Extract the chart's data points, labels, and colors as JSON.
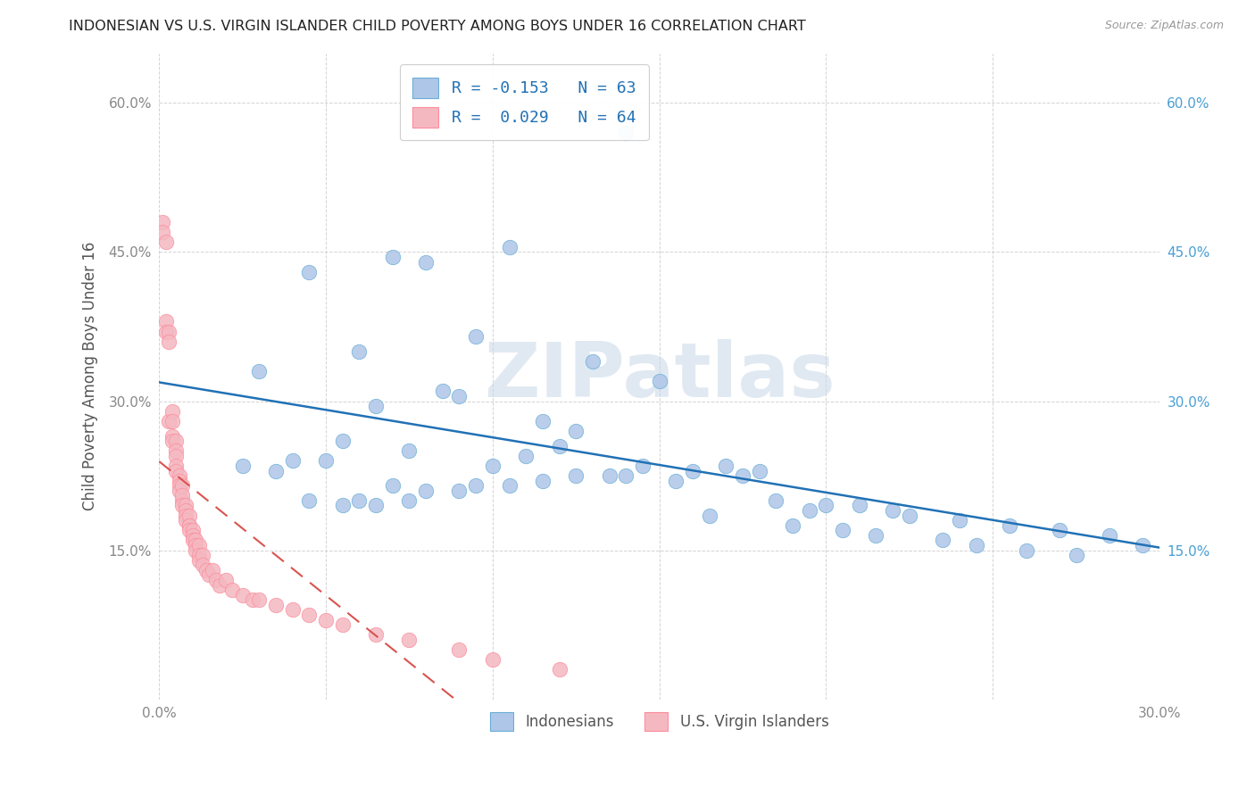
{
  "title": "INDONESIAN VS U.S. VIRGIN ISLANDER CHILD POVERTY AMONG BOYS UNDER 16 CORRELATION CHART",
  "source": "Source: ZipAtlas.com",
  "ylabel": "Child Poverty Among Boys Under 16",
  "xlim": [
    0.0,
    0.3
  ],
  "ylim": [
    0.0,
    0.65
  ],
  "xtick_vals": [
    0.0,
    0.05,
    0.1,
    0.15,
    0.2,
    0.25,
    0.3
  ],
  "xtick_labels": [
    "0.0%",
    "",
    "",
    "",
    "",
    "",
    "30.0%"
  ],
  "ytick_vals": [
    0.0,
    0.15,
    0.3,
    0.45,
    0.6
  ],
  "ytick_labels_left": [
    "",
    "15.0%",
    "30.0%",
    "45.0%",
    "60.0%"
  ],
  "ytick_labels_right": [
    "",
    "15.0%",
    "30.0%",
    "45.0%",
    "60.0%"
  ],
  "blue_face": "#aec6e8",
  "blue_edge": "#6baed6",
  "pink_face": "#f4b8c1",
  "pink_edge": "#fc8d9c",
  "blue_line_color": "#2171b5",
  "pink_line_color": "#d9534f",
  "right_axis_color": "#4a9fd4",
  "watermark_text": "ZIPatlas",
  "watermark_color": "#c8d8e8",
  "legend1_labels": [
    "R = -0.153   N = 63",
    "R =  0.029   N = 64"
  ],
  "legend2_labels": [
    "Indonesians",
    "U.S. Virgin Islanders"
  ],
  "legend_text_color": "#2171b5",
  "tick_color": "#888888",
  "grid_color": "#cccccc",
  "title_color": "#222222",
  "source_color": "#999999",
  "ylabel_color": "#555555",
  "blue_R": -0.153,
  "pink_R": 0.029,
  "blue_points_x": [
    0.14,
    0.07,
    0.08,
    0.105,
    0.045,
    0.095,
    0.06,
    0.13,
    0.15,
    0.03,
    0.085,
    0.065,
    0.115,
    0.125,
    0.055,
    0.09,
    0.075,
    0.11,
    0.05,
    0.04,
    0.12,
    0.1,
    0.17,
    0.145,
    0.16,
    0.135,
    0.155,
    0.175,
    0.025,
    0.035,
    0.18,
    0.07,
    0.08,
    0.06,
    0.09,
    0.065,
    0.045,
    0.075,
    0.055,
    0.095,
    0.115,
    0.105,
    0.125,
    0.14,
    0.2,
    0.185,
    0.195,
    0.21,
    0.225,
    0.24,
    0.255,
    0.27,
    0.285,
    0.295,
    0.22,
    0.165,
    0.19,
    0.205,
    0.215,
    0.235,
    0.245,
    0.26,
    0.275
  ],
  "blue_points_y": [
    0.57,
    0.445,
    0.44,
    0.455,
    0.43,
    0.365,
    0.35,
    0.34,
    0.32,
    0.33,
    0.31,
    0.295,
    0.28,
    0.27,
    0.26,
    0.305,
    0.25,
    0.245,
    0.24,
    0.24,
    0.255,
    0.235,
    0.235,
    0.235,
    0.23,
    0.225,
    0.22,
    0.225,
    0.235,
    0.23,
    0.23,
    0.215,
    0.21,
    0.2,
    0.21,
    0.195,
    0.2,
    0.2,
    0.195,
    0.215,
    0.22,
    0.215,
    0.225,
    0.225,
    0.195,
    0.2,
    0.19,
    0.195,
    0.185,
    0.18,
    0.175,
    0.17,
    0.165,
    0.155,
    0.19,
    0.185,
    0.175,
    0.17,
    0.165,
    0.16,
    0.155,
    0.15,
    0.145
  ],
  "pink_points_x": [
    0.001,
    0.001,
    0.002,
    0.002,
    0.002,
    0.003,
    0.003,
    0.003,
    0.004,
    0.004,
    0.004,
    0.004,
    0.005,
    0.005,
    0.005,
    0.005,
    0.005,
    0.006,
    0.006,
    0.006,
    0.006,
    0.007,
    0.007,
    0.007,
    0.007,
    0.008,
    0.008,
    0.008,
    0.008,
    0.009,
    0.009,
    0.009,
    0.009,
    0.01,
    0.01,
    0.01,
    0.011,
    0.011,
    0.011,
    0.012,
    0.012,
    0.012,
    0.013,
    0.013,
    0.014,
    0.015,
    0.016,
    0.017,
    0.018,
    0.02,
    0.022,
    0.025,
    0.028,
    0.03,
    0.035,
    0.04,
    0.045,
    0.05,
    0.055,
    0.065,
    0.075,
    0.09,
    0.1,
    0.12
  ],
  "pink_points_y": [
    0.48,
    0.47,
    0.46,
    0.38,
    0.37,
    0.37,
    0.36,
    0.28,
    0.29,
    0.28,
    0.265,
    0.26,
    0.26,
    0.25,
    0.245,
    0.235,
    0.23,
    0.225,
    0.22,
    0.215,
    0.21,
    0.215,
    0.2,
    0.205,
    0.195,
    0.195,
    0.19,
    0.185,
    0.18,
    0.185,
    0.175,
    0.175,
    0.17,
    0.17,
    0.165,
    0.16,
    0.16,
    0.155,
    0.15,
    0.155,
    0.145,
    0.14,
    0.145,
    0.135,
    0.13,
    0.125,
    0.13,
    0.12,
    0.115,
    0.12,
    0.11,
    0.105,
    0.1,
    0.1,
    0.095,
    0.09,
    0.085,
    0.08,
    0.075,
    0.065,
    0.06,
    0.05,
    0.04,
    0.03
  ]
}
